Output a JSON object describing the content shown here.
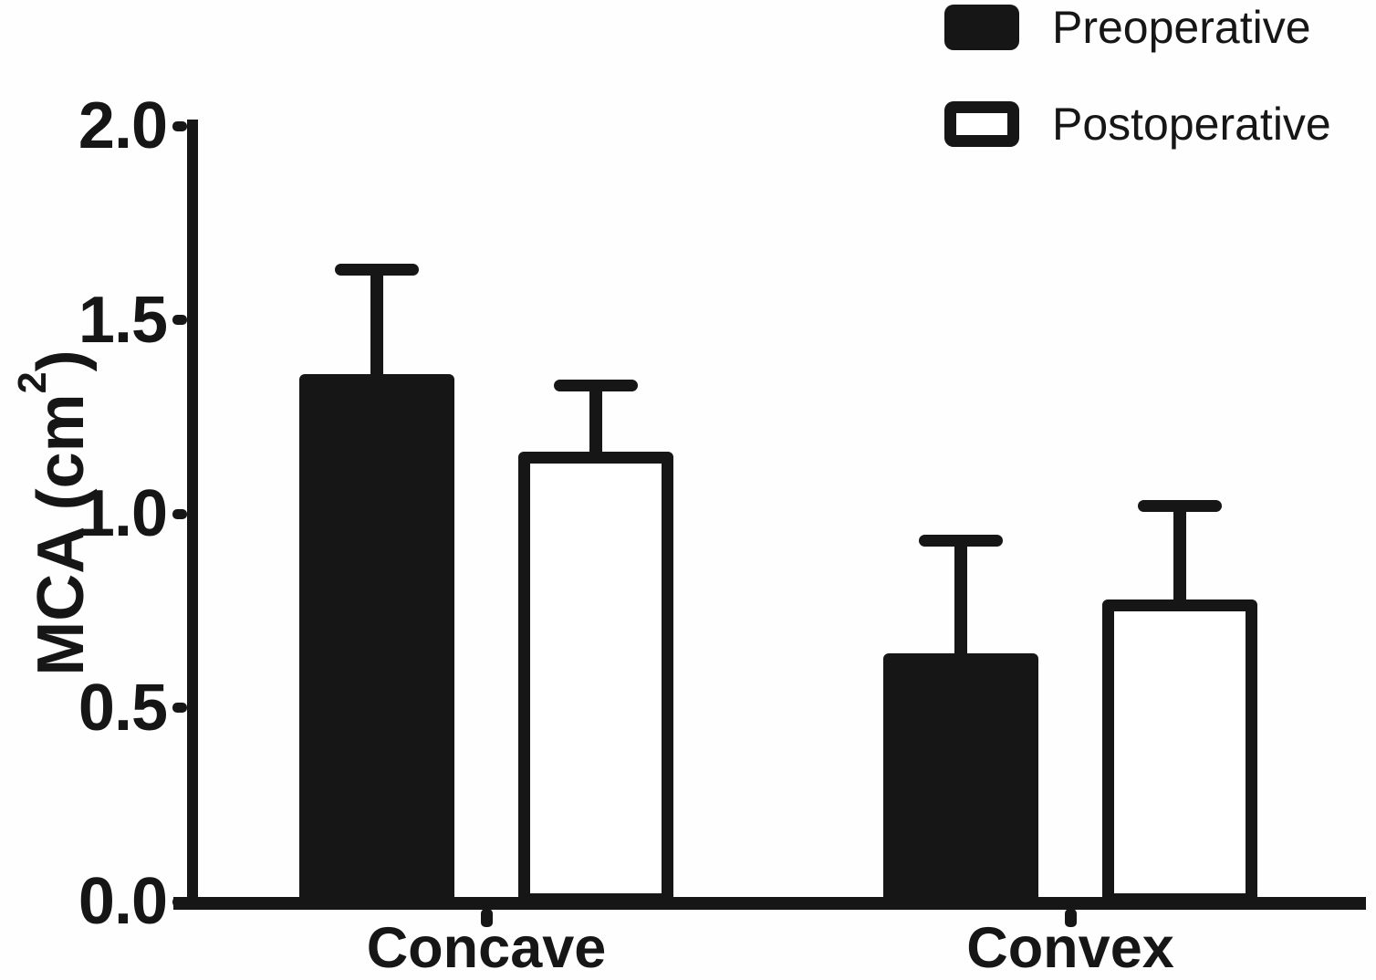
{
  "figure": {
    "background": "#fefefe",
    "ink": "#161616"
  },
  "y_axis": {
    "title": {
      "text": "MCA (cm²)",
      "prefix": "MCA (cm",
      "superscript": "2",
      "suffix": ")"
    },
    "tick_labels": [
      "0.0",
      "0.5",
      "1.0",
      "1.5",
      "2.0"
    ]
  },
  "x_axis": {
    "categories": [
      "Concave",
      "Convex"
    ]
  },
  "legend": {
    "items": [
      {
        "label": "Preoperative",
        "swatch": "filled"
      },
      {
        "label": "Postoperative",
        "swatch": "open"
      }
    ]
  },
  "chart_data": {
    "type": "bar",
    "title": "",
    "xlabel": "",
    "ylabel": "MCA (cm²)",
    "categories": [
      "Concave",
      "Convex"
    ],
    "series": [
      {
        "name": "Preoperative",
        "style": "filled",
        "values": [
          1.36,
          0.64
        ],
        "errors_upper": [
          0.27,
          0.29
        ]
      },
      {
        "name": "Postoperative",
        "style": "open",
        "values": [
          1.16,
          0.78
        ],
        "errors_upper": [
          0.17,
          0.24
        ]
      }
    ],
    "error_bars": "upper-only-with-caps",
    "ylim": [
      0,
      2
    ],
    "ytick_values": [
      0,
      0.5,
      1,
      1.5,
      2
    ],
    "ytick_labels": [
      "0.0",
      "0.5",
      "1.0",
      "1.5",
      "2.0"
    ],
    "grid": false,
    "legend_position": "top-right",
    "colors": {
      "filled": "#161616",
      "open": "#ffffff",
      "stroke": "#161616"
    }
  }
}
